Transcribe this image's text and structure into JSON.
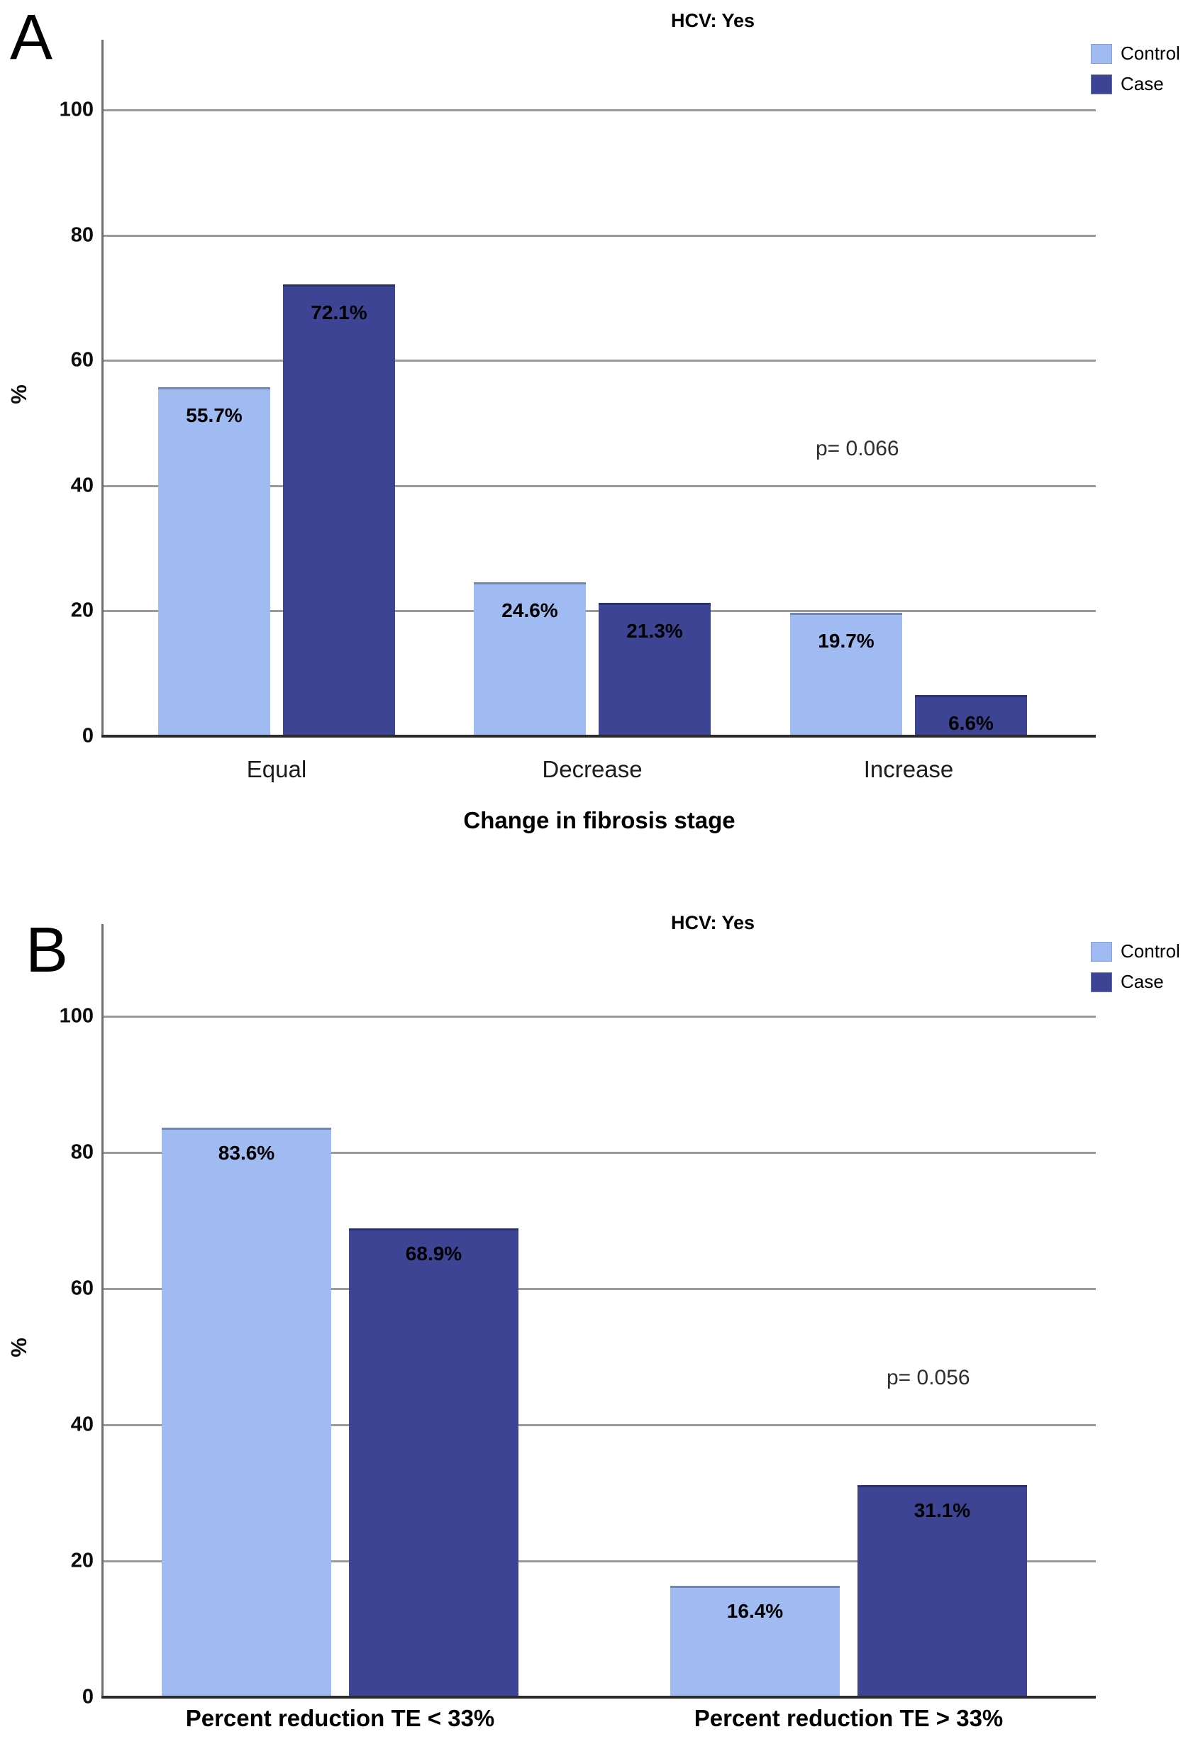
{
  "figure_title": "HCV: Yes",
  "colors": {
    "control": "#9fbbf2",
    "case": "#3d4494",
    "gridline": "#9a9a9a",
    "axis": "#2b2b2b"
  },
  "chart_data": [
    {
      "type": "bar",
      "panel_label": "A",
      "title": "HCV: Yes",
      "categories": [
        "Equal",
        "Decrease",
        "Increase"
      ],
      "series": [
        {
          "name": "Control",
          "color": "#9fbbf2",
          "values": [
            55.7,
            24.6,
            19.7
          ]
        },
        {
          "name": "Case",
          "color": "#3d4494",
          "values": [
            72.1,
            21.3,
            6.6
          ]
        }
      ],
      "value_label_suffix": "%",
      "annotation": "p= 0.066",
      "xlabel": "Change in fibrosis stage",
      "ylabel": "%",
      "yticks": [
        0,
        20,
        40,
        60,
        80,
        100
      ],
      "ylim": [
        0,
        110
      ],
      "grid": true,
      "legend_position": "top-right",
      "legend": [
        {
          "label": "Control",
          "color": "#9fbbf2"
        },
        {
          "label": "Case",
          "color": "#3d4494"
        }
      ]
    },
    {
      "type": "bar",
      "panel_label": "B",
      "title": "HCV: Yes",
      "categories": [
        "Percent reduction TE < 33%",
        "Percent reduction TE > 33%"
      ],
      "series": [
        {
          "name": "Control",
          "color": "#9fbbf2",
          "values": [
            83.6,
            16.4
          ]
        },
        {
          "name": "Case",
          "color": "#3d4494",
          "values": [
            68.9,
            31.1
          ]
        }
      ],
      "value_label_suffix": "%",
      "annotation": "p= 0.056",
      "xlabel": "",
      "ylabel": "%",
      "yticks": [
        0,
        20,
        40,
        60,
        80,
        100
      ],
      "ylim": [
        0,
        110
      ],
      "grid": true,
      "legend_position": "top-right",
      "legend": [
        {
          "label": "Control",
          "color": "#9fbbf2"
        },
        {
          "label": "Case",
          "color": "#3d4494"
        }
      ]
    }
  ]
}
